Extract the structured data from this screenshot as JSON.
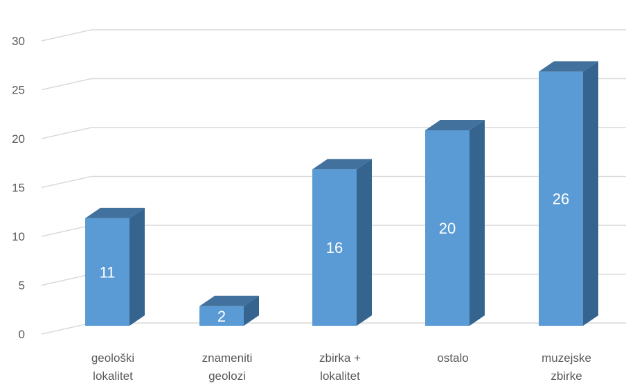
{
  "chart_data": {
    "type": "bar",
    "style": "3d-column",
    "categories": [
      [
        "geološki",
        "lokalitet"
      ],
      [
        "znameniti",
        "geolozi"
      ],
      [
        "zbirka +",
        "lokalitet"
      ],
      [
        "ostalo"
      ],
      [
        "muzejske",
        "zbirke"
      ]
    ],
    "values": [
      11,
      2,
      16,
      20,
      26
    ],
    "data_labels": [
      "11",
      "2",
      "16",
      "20",
      "26"
    ],
    "y_ticks": [
      "0",
      "5",
      "10",
      "15",
      "20",
      "25",
      "30"
    ],
    "ylim": [
      0,
      30
    ],
    "grid": true,
    "legend": false,
    "colors": {
      "bar_front": "#5b9bd5",
      "bar_top": "#41719c",
      "bar_side": "#35648f",
      "grid": "#d9d9d9",
      "text": "#595959"
    }
  }
}
